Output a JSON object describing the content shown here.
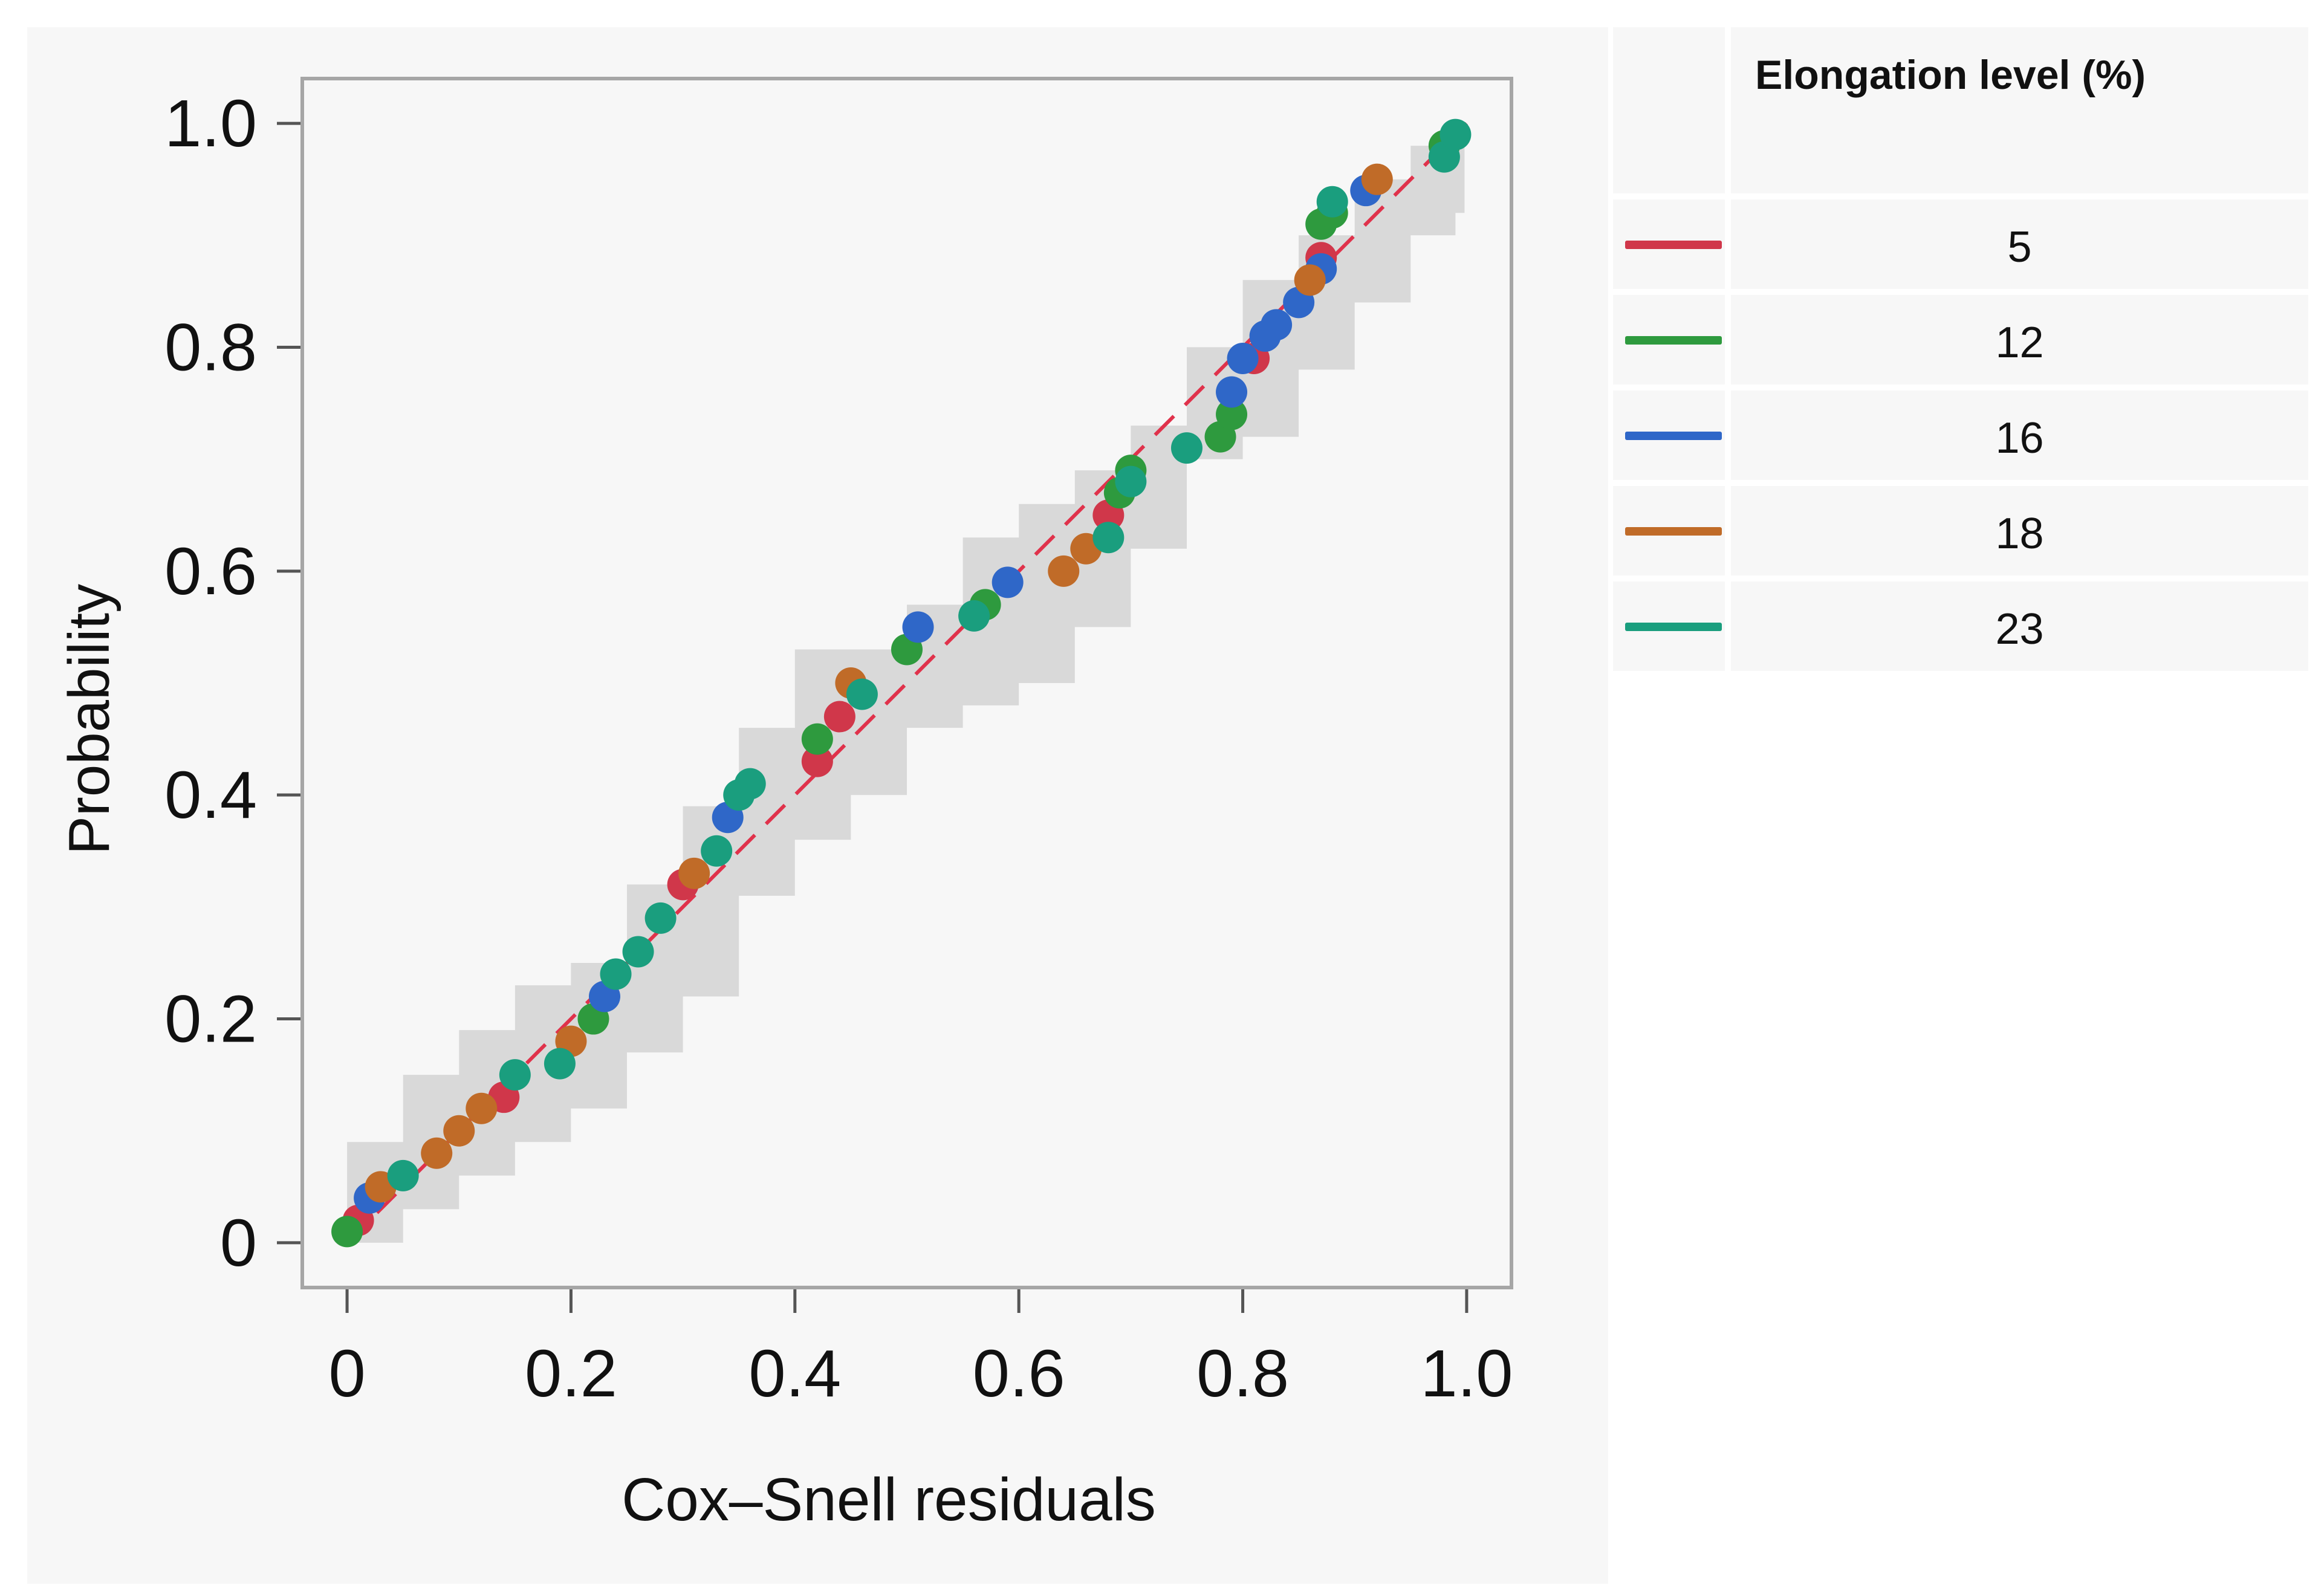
{
  "chart_data": {
    "type": "scatter",
    "title": "",
    "xlabel": "Cox–Snell residuals",
    "ylabel": "Probability",
    "xlim": [
      -0.04,
      1.04
    ],
    "ylim": [
      -0.04,
      1.04
    ],
    "x_ticks": [
      0,
      0.2,
      0.4,
      0.6,
      0.8,
      1.0
    ],
    "x_tick_labels": [
      "0",
      "0.2",
      "0.4",
      "0.6",
      "0.8",
      "1.0"
    ],
    "y_ticks": [
      0,
      0.2,
      0.4,
      0.6,
      0.8,
      1.0
    ],
    "y_tick_labels": [
      "0",
      "0.2",
      "0.4",
      "0.6",
      "0.8",
      "1.0"
    ],
    "grid": false,
    "reference_line": {
      "style": "dashed",
      "color": "#e0324b",
      "from": [
        0,
        0
      ],
      "to": [
        1,
        1
      ]
    },
    "confidence_band": {
      "color": "#d9d9d9",
      "x": [
        0,
        0.05,
        0.1,
        0.15,
        0.2,
        0.25,
        0.3,
        0.35,
        0.4,
        0.45,
        0.5,
        0.55,
        0.6,
        0.65,
        0.7,
        0.75,
        0.8,
        0.85,
        0.9,
        0.95,
        0.99
      ],
      "lower": [
        0,
        0.03,
        0.06,
        0.09,
        0.12,
        0.17,
        0.22,
        0.31,
        0.36,
        0.4,
        0.46,
        0.48,
        0.5,
        0.55,
        0.62,
        0.7,
        0.72,
        0.78,
        0.84,
        0.9,
        0.92
      ],
      "upper": [
        0.09,
        0.15,
        0.19,
        0.23,
        0.25,
        0.32,
        0.39,
        0.46,
        0.53,
        0.53,
        0.57,
        0.63,
        0.66,
        0.69,
        0.73,
        0.8,
        0.86,
        0.9,
        0.95,
        0.98,
        0.99
      ]
    },
    "legend_title": "Elongation level (%)",
    "legend_position": "right",
    "series": [
      {
        "name": "5",
        "color": "#d0374a",
        "x": [
          0.01,
          0.14,
          0.3,
          0.42,
          0.44,
          0.68,
          0.81,
          0.87
        ],
        "y": [
          0.02,
          0.13,
          0.32,
          0.43,
          0.47,
          0.65,
          0.79,
          0.88
        ]
      },
      {
        "name": "12",
        "color": "#2e9a3e",
        "x": [
          0,
          0.22,
          0.42,
          0.5,
          0.57,
          0.69,
          0.7,
          0.78,
          0.79,
          0.87,
          0.88,
          0.98
        ],
        "y": [
          0.01,
          0.2,
          0.45,
          0.53,
          0.57,
          0.67,
          0.69,
          0.72,
          0.74,
          0.91,
          0.92,
          0.98
        ]
      },
      {
        "name": "16",
        "color": "#2f67c8",
        "x": [
          0.02,
          0.23,
          0.34,
          0.51,
          0.59,
          0.79,
          0.8,
          0.82,
          0.83,
          0.85,
          0.87,
          0.91
        ],
        "y": [
          0.04,
          0.22,
          0.38,
          0.55,
          0.59,
          0.76,
          0.79,
          0.81,
          0.82,
          0.84,
          0.87,
          0.94
        ]
      },
      {
        "name": "18",
        "color": "#c06b28",
        "x": [
          0.03,
          0.08,
          0.1,
          0.12,
          0.2,
          0.31,
          0.45,
          0.64,
          0.66,
          0.86,
          0.92
        ],
        "y": [
          0.05,
          0.08,
          0.1,
          0.12,
          0.18,
          0.33,
          0.5,
          0.6,
          0.62,
          0.86,
          0.95
        ]
      },
      {
        "name": "23",
        "color": "#1a9e7e",
        "x": [
          0.05,
          0.15,
          0.19,
          0.24,
          0.26,
          0.28,
          0.33,
          0.35,
          0.36,
          0.46,
          0.56,
          0.68,
          0.7,
          0.75,
          0.88,
          0.98,
          0.99
        ],
        "y": [
          0.06,
          0.15,
          0.16,
          0.24,
          0.26,
          0.29,
          0.35,
          0.4,
          0.41,
          0.49,
          0.56,
          0.63,
          0.68,
          0.71,
          0.93,
          0.97,
          0.99
        ]
      }
    ]
  }
}
